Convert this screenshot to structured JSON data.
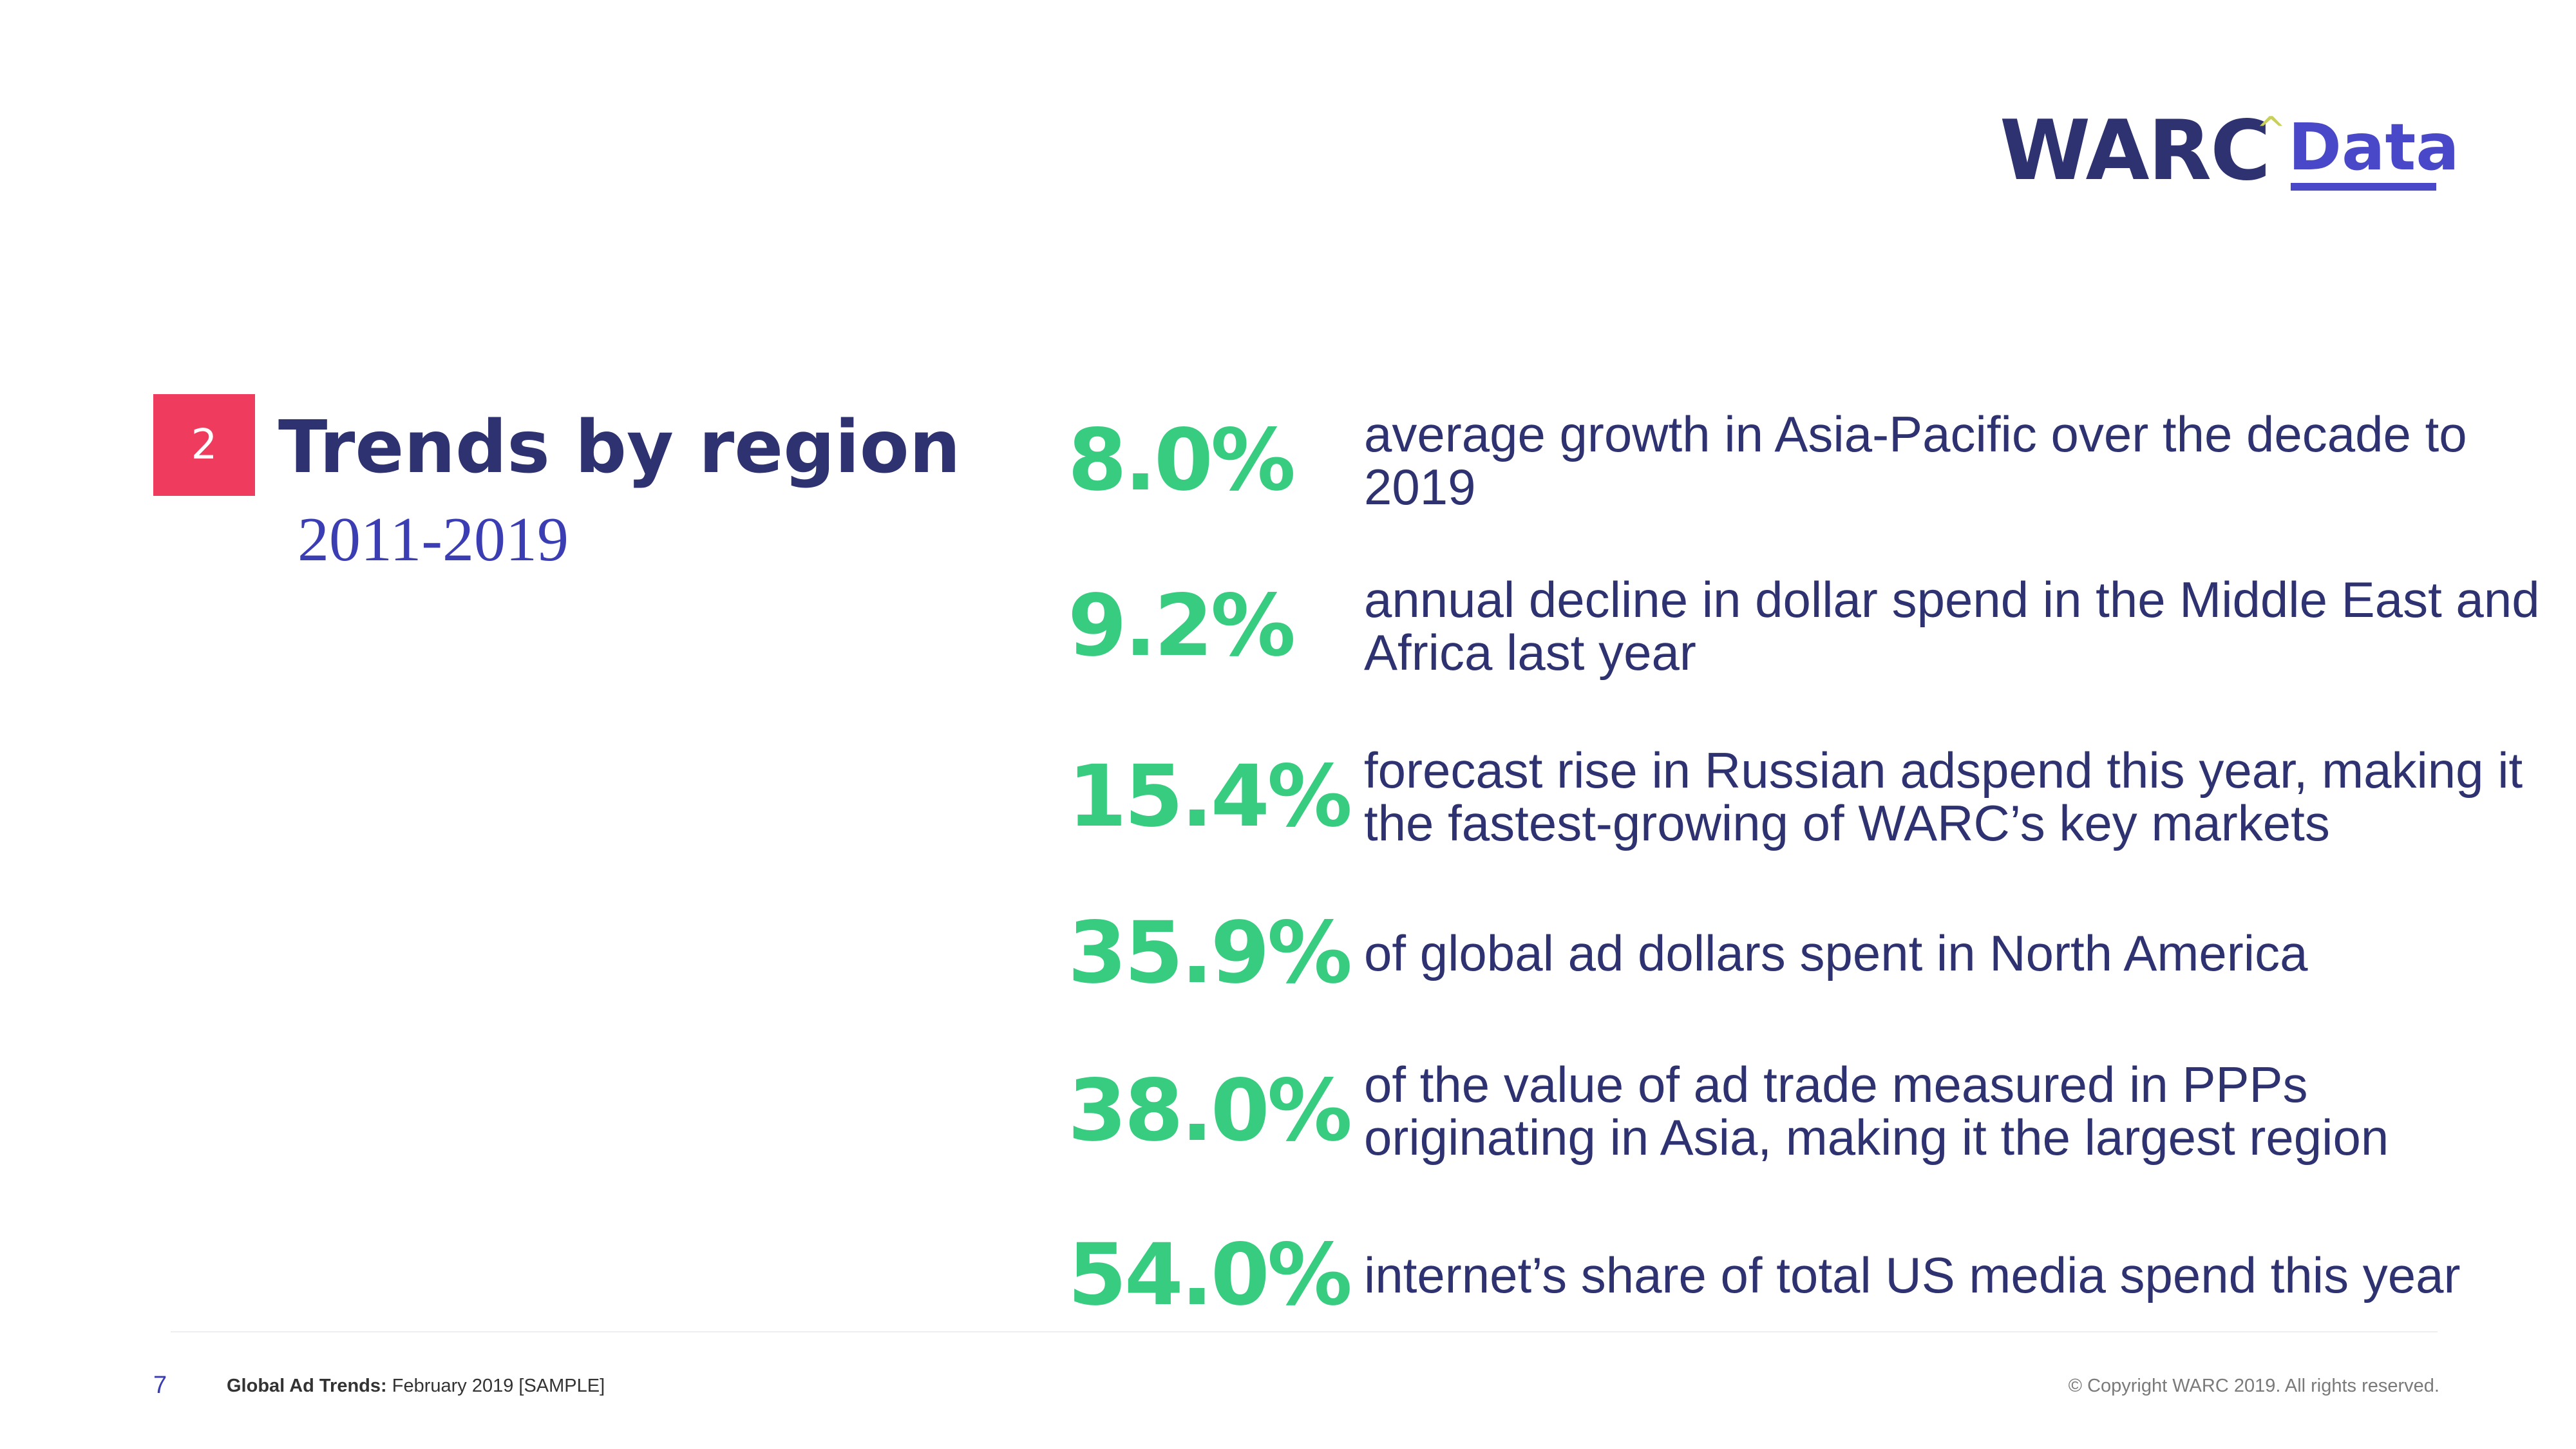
{
  "logo": {
    "brand": "WARC",
    "caret": "^",
    "product": "Data"
  },
  "section": {
    "number": "2",
    "title": "Trends by region",
    "subtitle": "2011-2019"
  },
  "stats": [
    {
      "value": "8.0%",
      "description": "average growth in Asia-Pacific over the decade to 2019"
    },
    {
      "value": "9.2%",
      "description": "annual decline in dollar spend in the Middle East and Africa last year"
    },
    {
      "value": "15.4%",
      "description": "forecast rise in Russian adspend this year, making it the fastest-growing of WARC’s key markets"
    },
    {
      "value": "35.9%",
      "description": "of global ad dollars spent in North America"
    },
    {
      "value": "38.0%",
      "description": "of the value of ad trade measured in PPPs originating in Asia, making it the largest region"
    },
    {
      "value": "54.0%",
      "description": "internet’s share of total US media spend this year"
    }
  ],
  "footer": {
    "page_number": "7",
    "report_title": "Global Ad Trends:",
    "report_edition": "February 2019 [SAMPLE]",
    "copyright": "© Copyright WARC 2019. All rights reserved."
  },
  "colors": {
    "navy": "#2e3270",
    "accent_green": "#37cc80",
    "badge_red": "#ef3b5e",
    "logo_blue": "#4848c8"
  }
}
